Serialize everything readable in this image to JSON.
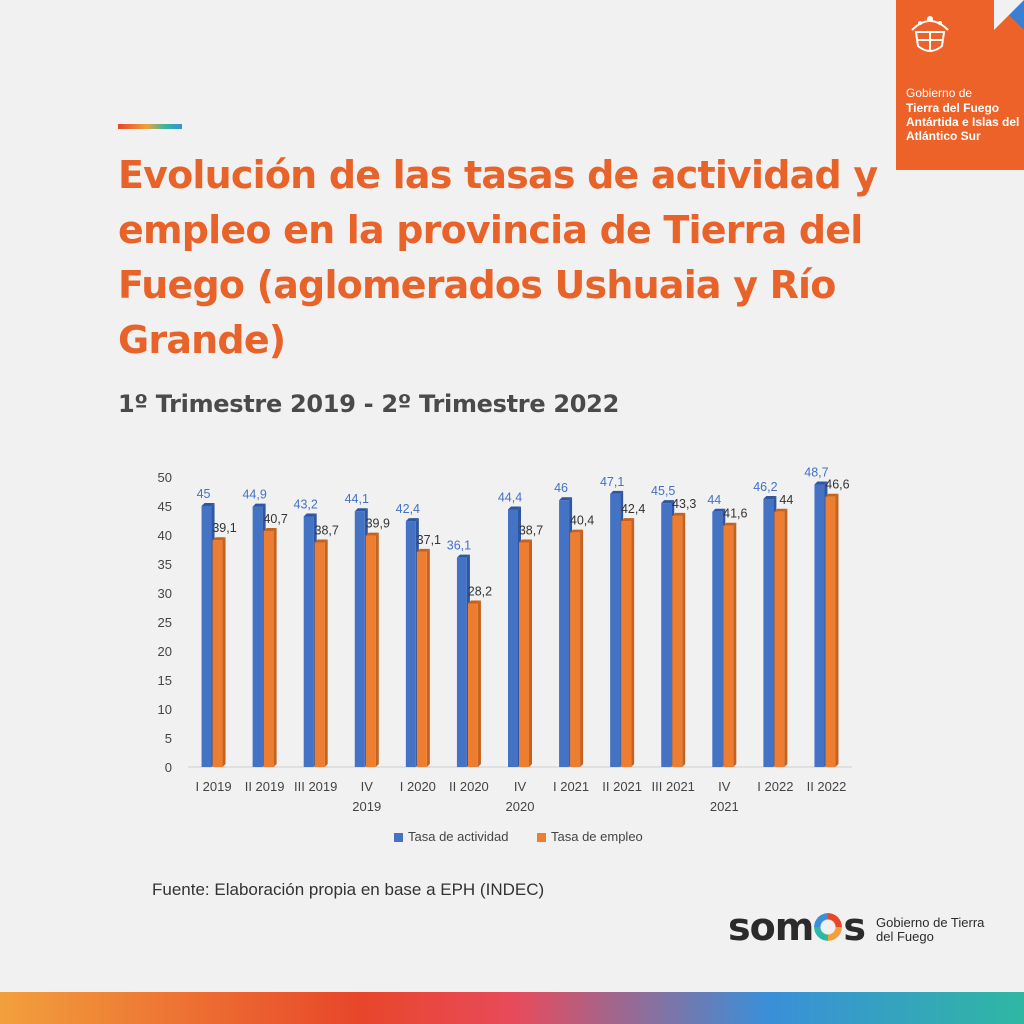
{
  "title": "Evolución de las tasas de actividad y empleo en la provincia de Tierra del Fuego (aglomerados Ushuaia y Río Grande)",
  "subtitle": "1º Trimestre 2019 - 2º Trimestre 2022",
  "logo": {
    "line1": "Gobierno de",
    "line2": "Tierra del Fuego Antártida e Islas del Atlántico Sur"
  },
  "source": "Fuente: Elaboración propia en base a EPH (INDEC)",
  "footer_brand": {
    "word_start": "som",
    "word_end": "s",
    "tagline": "Gobierno de Tierra del Fuego"
  },
  "colors": {
    "accent": "#e8632a",
    "series_actividad": "#4472c4",
    "series_empleo": "#ed7d31"
  },
  "chart_data": {
    "type": "bar",
    "categories": [
      [
        "I 2019"
      ],
      [
        "II 2019"
      ],
      [
        "III 2019"
      ],
      [
        "IV",
        "2019"
      ],
      [
        "I 2020"
      ],
      [
        "II 2020"
      ],
      [
        "IV",
        "2020"
      ],
      [
        "I 2021"
      ],
      [
        "II 2021"
      ],
      [
        "III 2021"
      ],
      [
        "IV",
        "2021"
      ],
      [
        "I 2022"
      ],
      [
        "II 2022"
      ]
    ],
    "series": [
      {
        "name": "Tasa de actividad",
        "values": [
          45,
          44.9,
          43.2,
          44.1,
          42.4,
          36.1,
          44.4,
          46,
          47.1,
          45.5,
          44,
          46.2,
          48.7
        ],
        "labels": [
          "45",
          "44,9",
          "43,2",
          "44,1",
          "42,4",
          "36,1",
          "44,4",
          "46",
          "47,1",
          "45,5",
          "44",
          "46,2",
          "48,7"
        ]
      },
      {
        "name": "Tasa de empleo",
        "values": [
          39.1,
          40.7,
          38.7,
          39.9,
          37.1,
          28.2,
          38.7,
          40.4,
          42.4,
          43.3,
          41.6,
          44,
          46.6
        ],
        "labels": [
          "39,1",
          "40,7",
          "38,7",
          "39,9",
          "37,1",
          "28,2",
          "38,7",
          "40,4",
          "42,4",
          "43,3",
          "41,6",
          "44",
          "46,6"
        ]
      }
    ],
    "ylim": [
      0,
      50
    ],
    "yticks": [
      0,
      5,
      10,
      15,
      20,
      25,
      30,
      35,
      40,
      45,
      50
    ],
    "legend_position": "bottom",
    "grid": false
  }
}
